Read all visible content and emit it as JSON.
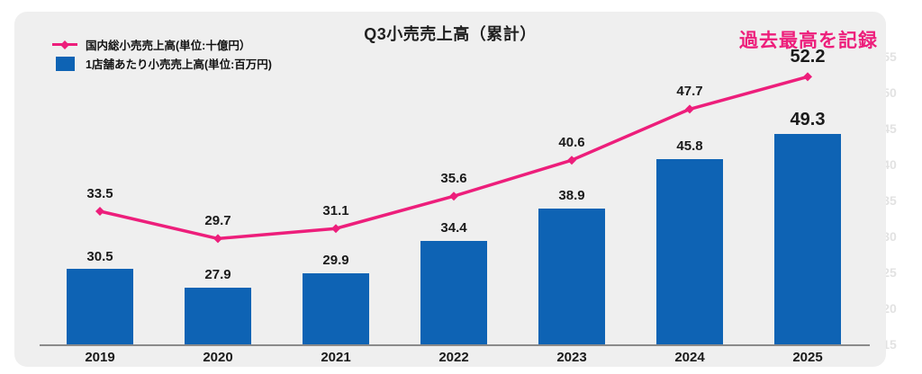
{
  "title": "Q3小売売上高（累計）",
  "annotation": "過去最高を記録",
  "legend": {
    "items": [
      {
        "label": "国内総小売売上高(単位:十億円）",
        "series": "line"
      },
      {
        "label": "1店舗あたり小売売上高(単位:百万円)",
        "series": "bar"
      }
    ]
  },
  "colors": {
    "line_pink": "#ed1e7b",
    "bar_blue": "#0e63b4",
    "card_background": "#efefef",
    "axis_gray": "#8a8a8a",
    "label_dark": "#1a1a1a",
    "faint_right_ticks": "#e2e2e2"
  },
  "chart_data": {
    "type": "combo",
    "title": "Q3小売売上高（累計）",
    "categories": [
      "2019",
      "2020",
      "2021",
      "2022",
      "2023",
      "2024",
      "2025"
    ],
    "series": [
      {
        "name": "国内総小売売上高(単位:十億円）",
        "type": "line",
        "marker": "diamond",
        "color": "#ed1e7b",
        "values": [
          33.5,
          29.7,
          31.1,
          35.6,
          40.6,
          47.7,
          52.2
        ]
      },
      {
        "name": "1店舗あたり小売売上高(単位:百万円)",
        "type": "bar",
        "color": "#0e63b4",
        "values": [
          30.5,
          27.9,
          29.9,
          34.4,
          38.9,
          45.8,
          49.3
        ]
      }
    ],
    "annotation": {
      "text": "過去最高を記録",
      "color": "#ed1e7b",
      "position": "top-right"
    },
    "right_axis_ticks": [
      55,
      50,
      45,
      40,
      35,
      30,
      25,
      20,
      15
    ],
    "value_labels": "all points, bold; 2025 labels enlarged",
    "grid": "off",
    "legend_position": "top-left",
    "background": "#efefef"
  }
}
